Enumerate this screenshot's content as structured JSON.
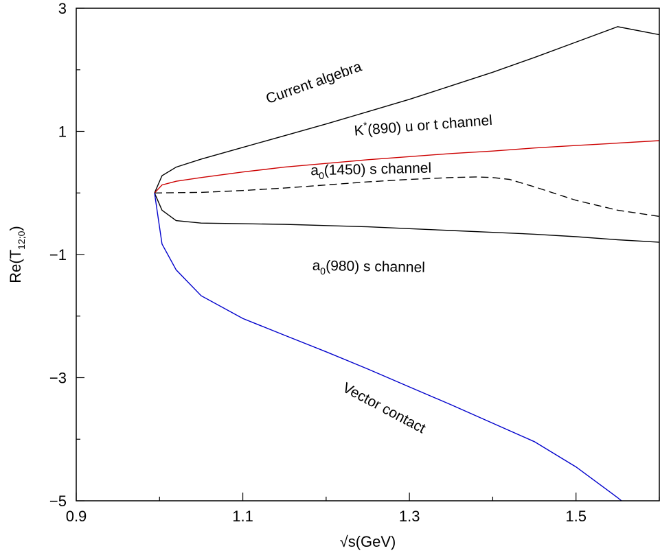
{
  "chart_data": {
    "type": "line",
    "xlabel": "√s(GeV)",
    "ylabel": {
      "main": "Re(T",
      "sub": "12;0",
      "close": ")"
    },
    "xlim": [
      0.9,
      1.6
    ],
    "ylim": [
      -5,
      3
    ],
    "xticks": [
      0.9,
      1.0,
      1.1,
      1.2,
      1.3,
      1.4,
      1.5,
      1.6
    ],
    "xtick_labels": [
      "0.9",
      "",
      "1.1",
      "",
      "1.3",
      "",
      "1.5",
      ""
    ],
    "yticks": [
      3,
      2,
      1,
      0,
      -1,
      -2,
      -3,
      -4,
      -5
    ],
    "ytick_labels": [
      "3",
      "",
      "1",
      "",
      "−1",
      "",
      "−3",
      "",
      "−5"
    ],
    "grid": false,
    "series": [
      {
        "color": "#000000",
        "dash": false,
        "x": [
          0.994,
          1.003,
          1.02,
          1.05,
          1.1,
          1.15,
          1.2,
          1.25,
          1.3,
          1.35,
          1.4,
          1.45,
          1.5,
          1.55,
          1.6
        ],
        "y": [
          0.0,
          0.28,
          0.42,
          0.55,
          0.74,
          0.93,
          1.12,
          1.32,
          1.52,
          1.74,
          1.96,
          2.2,
          2.45,
          2.7,
          2.57
        ]
      },
      {
        "color": "#cc0000",
        "dash": false,
        "x": [
          0.994,
          1.003,
          1.02,
          1.05,
          1.1,
          1.15,
          1.2,
          1.25,
          1.3,
          1.35,
          1.4,
          1.45,
          1.5,
          1.55,
          1.6
        ],
        "y": [
          0.0,
          0.13,
          0.19,
          0.25,
          0.34,
          0.42,
          0.48,
          0.54,
          0.59,
          0.64,
          0.68,
          0.73,
          0.77,
          0.81,
          0.85
        ]
      },
      {
        "color": "#000000",
        "dash": true,
        "x": [
          0.994,
          1.05,
          1.1,
          1.15,
          1.2,
          1.25,
          1.3,
          1.35,
          1.38,
          1.4,
          1.42,
          1.45,
          1.5,
          1.55,
          1.6
        ],
        "y": [
          0.0,
          0.01,
          0.04,
          0.08,
          0.13,
          0.18,
          0.22,
          0.25,
          0.26,
          0.25,
          0.22,
          0.1,
          -0.12,
          -0.28,
          -0.38
        ]
      },
      {
        "color": "#000000",
        "dash": false,
        "x": [
          0.994,
          1.003,
          1.02,
          1.05,
          1.1,
          1.15,
          1.2,
          1.25,
          1.3,
          1.35,
          1.4,
          1.45,
          1.5,
          1.55,
          1.6
        ],
        "y": [
          0.0,
          -0.28,
          -0.45,
          -0.49,
          -0.5,
          -0.51,
          -0.53,
          -0.55,
          -0.58,
          -0.61,
          -0.64,
          -0.67,
          -0.71,
          -0.76,
          -0.8
        ]
      },
      {
        "color": "#0000cc",
        "dash": false,
        "x": [
          0.994,
          1.003,
          1.02,
          1.05,
          1.1,
          1.15,
          1.2,
          1.25,
          1.3,
          1.35,
          1.4,
          1.45,
          1.5,
          1.55,
          1.6
        ],
        "y": [
          0.0,
          -0.83,
          -1.25,
          -1.67,
          -2.04,
          -2.31,
          -2.58,
          -2.86,
          -3.15,
          -3.44,
          -3.74,
          -4.04,
          -4.45,
          -4.95,
          -5.5
        ]
      }
    ],
    "annotations": [
      {
        "text": "Current algebra",
        "x": 1.187,
        "y": 1.72,
        "angle": -19.5
      },
      {
        "main": "K",
        "sup": "*",
        "rest": "(890) u or t channel",
        "x": 1.317,
        "y": 1.02,
        "angle": -4.5
      },
      {
        "main": "a",
        "sub": "0",
        "rest": "(1450) s channel",
        "x": 1.254,
        "y": 0.31,
        "angle": -1.2
      },
      {
        "main": "a",
        "sub": "0",
        "rest": "(980) s channel",
        "x": 1.251,
        "y": -1.27,
        "angle": 1
      },
      {
        "text": "Vector contact",
        "x": 1.267,
        "y": -3.56,
        "angle": 28
      }
    ]
  }
}
